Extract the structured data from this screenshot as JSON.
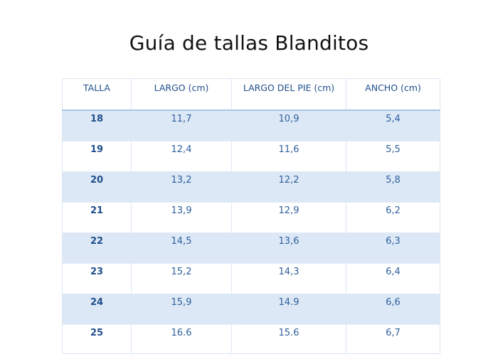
{
  "title": "Guía de tallas Blanditos",
  "table": {
    "headers": [
      "TALLA",
      "LARGO (cm)",
      "LARGO DEL PIE (cm)",
      "ANCHO (cm)"
    ],
    "rows": [
      [
        "18",
        "11,7",
        "10,9",
        "5,4"
      ],
      [
        "19",
        "12,4",
        "11,6",
        "5,5"
      ],
      [
        "20",
        "13,2",
        "12,2",
        "5,8"
      ],
      [
        "21",
        "13,9",
        "12,9",
        "6,2"
      ],
      [
        "22",
        "14,5",
        "13,6",
        "6,3"
      ],
      [
        "23",
        "15,2",
        "14,3",
        "6,4"
      ],
      [
        "24",
        "15,9",
        "14.9",
        "6,6"
      ],
      [
        "25",
        "16.6",
        "15.6",
        "6,7"
      ]
    ]
  },
  "colors": {
    "header_text": "#1f4e8c",
    "cell_text": "#2e5f9c",
    "shaded_row": "#dce8f6",
    "grid_line": "#dbe6f2"
  }
}
